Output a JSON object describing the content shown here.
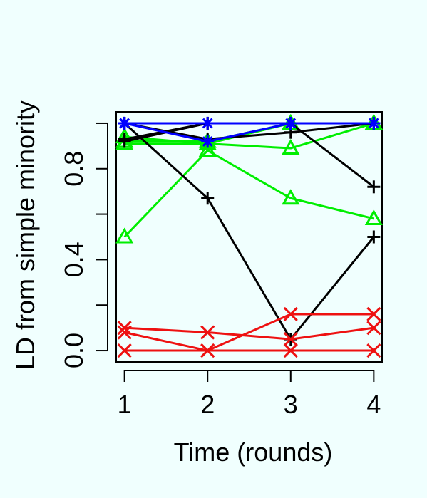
{
  "chart_data": {
    "type": "line",
    "title": "",
    "xlabel": "Time (rounds)",
    "ylabel": "LD from simple minority",
    "x": [
      1,
      2,
      3,
      4
    ],
    "xlim": [
      0.9,
      4.1
    ],
    "ylim": [
      -0.05,
      1.05
    ],
    "x_ticks": [
      1,
      2,
      3,
      4
    ],
    "y_ticks": [
      0,
      0.2,
      0.4,
      0.6,
      0.8,
      1.0
    ],
    "y_tick_labels": [
      "0.0",
      "",
      "0.4",
      "",
      "0.8",
      ""
    ],
    "grid": false,
    "series": [
      {
        "color": "#0000ff",
        "marker": "asterisk",
        "values": [
          1.0,
          1.0,
          1.0,
          1.0
        ]
      },
      {
        "color": "#0000ff",
        "marker": "asterisk",
        "values": [
          1.0,
          0.92,
          1.0,
          1.0
        ]
      },
      {
        "color": "#000000",
        "marker": "plus",
        "values": [
          1.0,
          0.67,
          0.05,
          0.5
        ]
      },
      {
        "color": "#000000",
        "marker": "plus",
        "values": [
          0.93,
          1.0,
          1.0,
          1.0
        ]
      },
      {
        "color": "#000000",
        "marker": "plus",
        "values": [
          1.0,
          0.93,
          0.96,
          1.0
        ]
      },
      {
        "color": "#000000",
        "marker": "plus",
        "values": [
          0.92,
          1.0,
          1.0,
          0.72
        ]
      },
      {
        "color": "#00ee00",
        "marker": "triangle",
        "values": [
          0.5,
          0.88,
          0.67,
          0.58
        ]
      },
      {
        "color": "#00ee00",
        "marker": "triangle",
        "values": [
          0.91,
          0.91,
          0.89,
          1.0
        ]
      },
      {
        "color": "#00ee00",
        "marker": "triangle",
        "values": [
          0.94,
          0.91,
          1.0,
          1.0
        ]
      },
      {
        "color": "#00ee00",
        "marker": "triangle",
        "values": [
          0.92,
          0.92,
          1.0,
          1.0
        ]
      },
      {
        "color": "#ee1111",
        "marker": "x",
        "values": [
          0.1,
          0.08,
          0.05,
          0.1
        ]
      },
      {
        "color": "#ee1111",
        "marker": "x",
        "values": [
          0.08,
          0.0,
          0.16,
          0.16
        ]
      },
      {
        "color": "#ee1111",
        "marker": "x",
        "values": [
          0.0,
          0.0,
          0.0,
          0.0
        ]
      }
    ]
  }
}
